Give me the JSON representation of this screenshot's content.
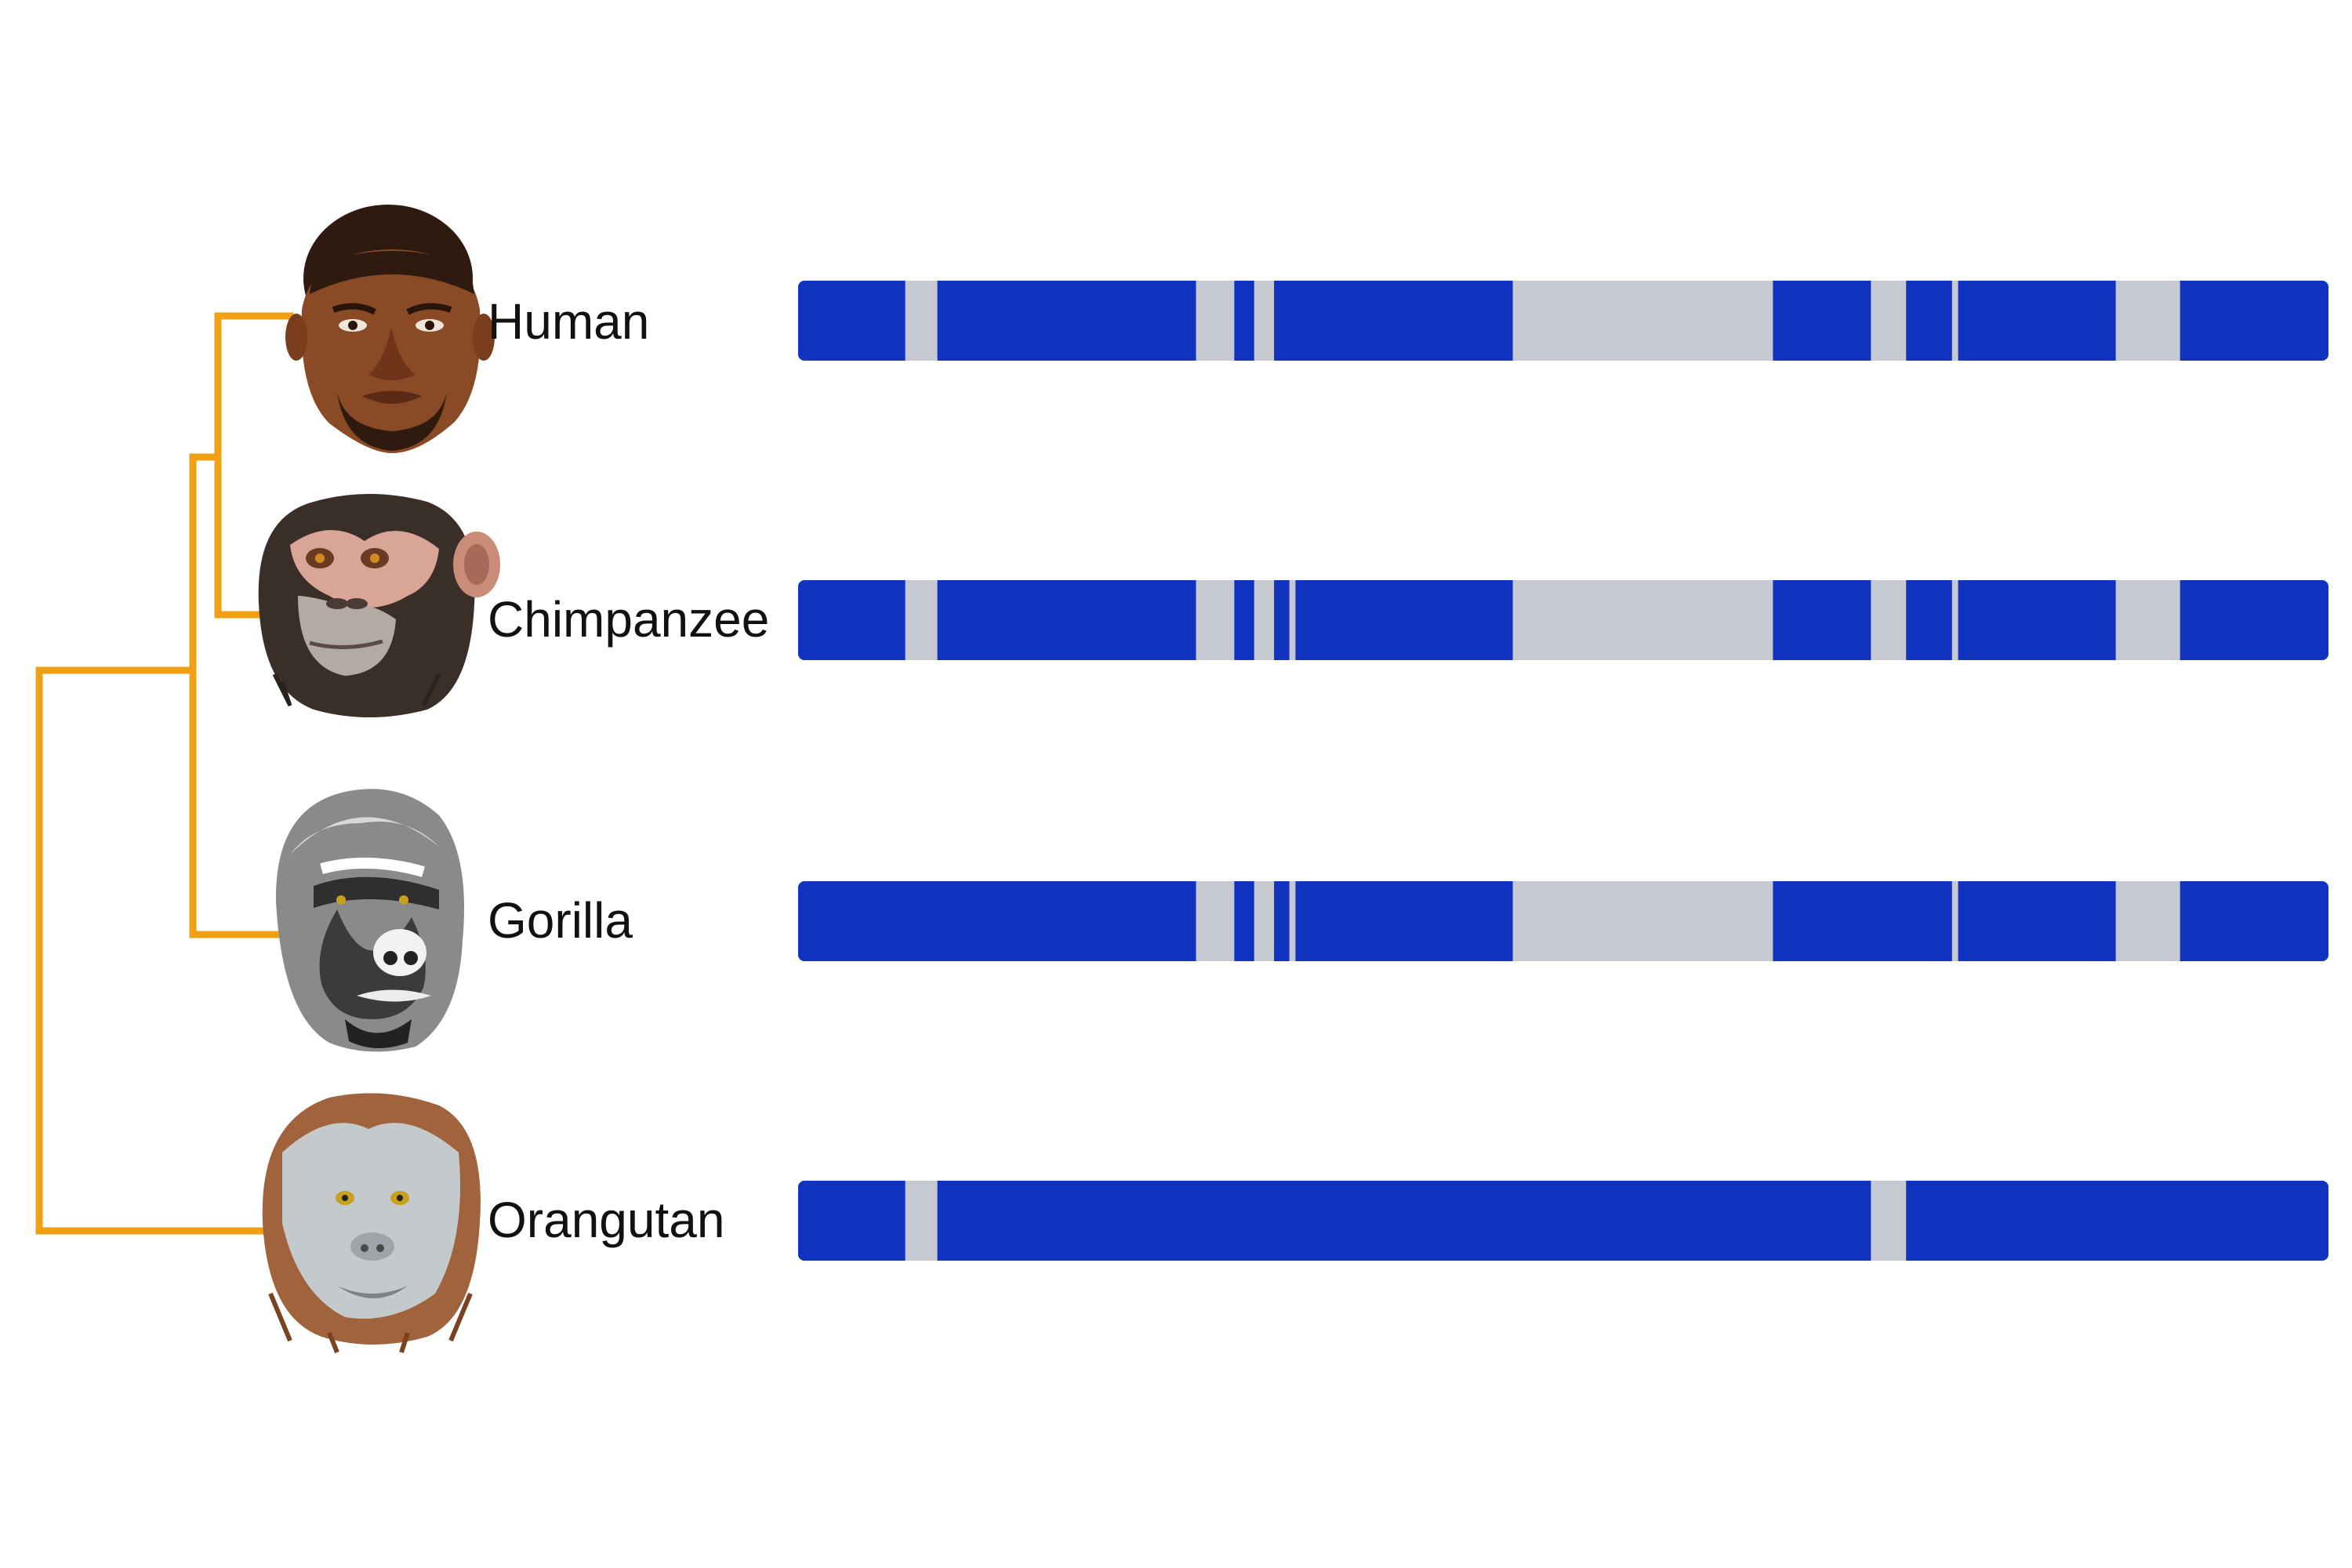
{
  "colors": {
    "branch": "#F0A012",
    "segment_present": "#1033C0",
    "segment_absent": "#C6C9D2"
  },
  "species": [
    {
      "label": "Human",
      "portrait": "human-face",
      "segments": [
        {
          "state": "present",
          "start": 0.0,
          "end": 0.07
        },
        {
          "state": "absent",
          "start": 0.07,
          "end": 0.091
        },
        {
          "state": "present",
          "start": 0.091,
          "end": 0.26
        },
        {
          "state": "absent",
          "start": 0.26,
          "end": 0.285
        },
        {
          "state": "present",
          "start": 0.285,
          "end": 0.298
        },
        {
          "state": "absent",
          "start": 0.298,
          "end": 0.311
        },
        {
          "state": "present",
          "start": 0.311,
          "end": 0.467
        },
        {
          "state": "absent",
          "start": 0.467,
          "end": 0.637
        },
        {
          "state": "present",
          "start": 0.637,
          "end": 0.701
        },
        {
          "state": "absent",
          "start": 0.701,
          "end": 0.724
        },
        {
          "state": "present",
          "start": 0.724,
          "end": 0.754
        },
        {
          "state": "absent",
          "start": 0.754,
          "end": 0.758
        },
        {
          "state": "present",
          "start": 0.758,
          "end": 0.861
        },
        {
          "state": "absent",
          "start": 0.861,
          "end": 0.903
        },
        {
          "state": "present",
          "start": 0.903,
          "end": 1.0
        }
      ]
    },
    {
      "label": "Chimpanzee",
      "portrait": "chimpanzee-face",
      "segments": [
        {
          "state": "present",
          "start": 0.0,
          "end": 0.07
        },
        {
          "state": "absent",
          "start": 0.07,
          "end": 0.091
        },
        {
          "state": "present",
          "start": 0.091,
          "end": 0.26
        },
        {
          "state": "absent",
          "start": 0.26,
          "end": 0.285
        },
        {
          "state": "present",
          "start": 0.285,
          "end": 0.298
        },
        {
          "state": "absent",
          "start": 0.298,
          "end": 0.311
        },
        {
          "state": "present",
          "start": 0.311,
          "end": 0.321
        },
        {
          "state": "absent",
          "start": 0.321,
          "end": 0.325
        },
        {
          "state": "present",
          "start": 0.325,
          "end": 0.467
        },
        {
          "state": "absent",
          "start": 0.467,
          "end": 0.637
        },
        {
          "state": "present",
          "start": 0.637,
          "end": 0.701
        },
        {
          "state": "absent",
          "start": 0.701,
          "end": 0.724
        },
        {
          "state": "present",
          "start": 0.724,
          "end": 0.754
        },
        {
          "state": "absent",
          "start": 0.754,
          "end": 0.758
        },
        {
          "state": "present",
          "start": 0.758,
          "end": 0.861
        },
        {
          "state": "absent",
          "start": 0.861,
          "end": 0.903
        },
        {
          "state": "present",
          "start": 0.903,
          "end": 1.0
        }
      ]
    },
    {
      "label": "Gorilla",
      "portrait": "gorilla-face",
      "segments": [
        {
          "state": "present",
          "start": 0.0,
          "end": 0.26
        },
        {
          "state": "absent",
          "start": 0.26,
          "end": 0.285
        },
        {
          "state": "present",
          "start": 0.285,
          "end": 0.298
        },
        {
          "state": "absent",
          "start": 0.298,
          "end": 0.311
        },
        {
          "state": "present",
          "start": 0.311,
          "end": 0.321
        },
        {
          "state": "absent",
          "start": 0.321,
          "end": 0.325
        },
        {
          "state": "present",
          "start": 0.325,
          "end": 0.467
        },
        {
          "state": "absent",
          "start": 0.467,
          "end": 0.637
        },
        {
          "state": "present",
          "start": 0.637,
          "end": 0.754
        },
        {
          "state": "absent",
          "start": 0.754,
          "end": 0.758
        },
        {
          "state": "present",
          "start": 0.758,
          "end": 0.861
        },
        {
          "state": "absent",
          "start": 0.861,
          "end": 0.903
        },
        {
          "state": "present",
          "start": 0.903,
          "end": 1.0
        }
      ]
    },
    {
      "label": "Orangutan",
      "portrait": "orangutan-face",
      "segments": [
        {
          "state": "present",
          "start": 0.0,
          "end": 0.07
        },
        {
          "state": "absent",
          "start": 0.07,
          "end": 0.091
        },
        {
          "state": "present",
          "start": 0.091,
          "end": 0.701
        },
        {
          "state": "absent",
          "start": 0.701,
          "end": 0.724
        },
        {
          "state": "present",
          "start": 0.724,
          "end": 1.0
        }
      ]
    }
  ]
}
